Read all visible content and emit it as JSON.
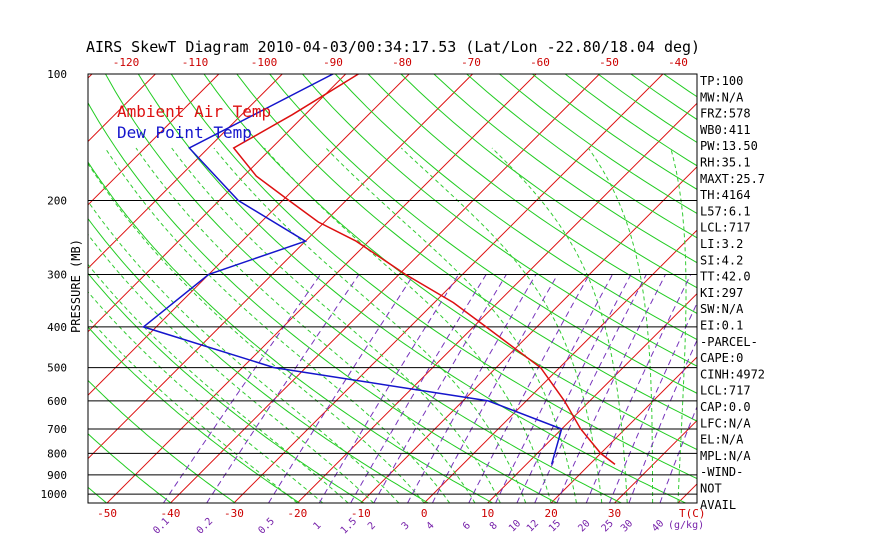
{
  "chart_data": {
    "type": "line",
    "title": "AIRS SkewT Diagram 2010-04-03/00:34:17.53 (Lat/Lon -22.80/18.04 deg)",
    "ylabel": "PRESSURE (MB)",
    "xlabel_temp": "T(C)",
    "xlabel_mix": "(g/kg)",
    "y_scale": "log",
    "ylim": [
      1050,
      100
    ],
    "xlim": [
      -53,
      43
    ],
    "pressure_ticks": [
      100,
      200,
      300,
      400,
      500,
      600,
      700,
      800,
      900,
      1000
    ],
    "bottom_temp_ticks": [
      -50,
      -40,
      -30,
      -20,
      -10,
      0,
      10,
      20,
      30
    ],
    "top_temp_ticks": [
      -120,
      -110,
      -100,
      -90,
      -80,
      -70,
      -60,
      -50,
      -40
    ],
    "mixing_ratio_labels": [
      "0.1",
      "0.2",
      "0.5",
      "1",
      "1.5",
      "2",
      "3",
      "4",
      "6",
      "8",
      "10",
      "12",
      "15",
      "20",
      "25",
      "30",
      "40"
    ],
    "grid": true,
    "legend": [
      {
        "name": "Ambient Air Temp",
        "color": "#dd1010"
      },
      {
        "name": "Dew Point Temp",
        "color": "#1515cc"
      }
    ],
    "series": [
      {
        "name": "Ambient Air Temp",
        "color": "#dd1010",
        "points": [
          {
            "p": 100,
            "t": -78
          },
          {
            "p": 125,
            "t": -82
          },
          {
            "p": 150,
            "t": -86
          },
          {
            "p": 175,
            "t": -78
          },
          {
            "p": 200,
            "t": -69
          },
          {
            "p": 225,
            "t": -61
          },
          {
            "p": 250,
            "t": -52
          },
          {
            "p": 300,
            "t": -39
          },
          {
            "p": 350,
            "t": -27
          },
          {
            "p": 400,
            "t": -18
          },
          {
            "p": 500,
            "t": -3
          },
          {
            "p": 600,
            "t": 6
          },
          {
            "p": 700,
            "t": 13
          },
          {
            "p": 800,
            "t": 20
          },
          {
            "p": 850,
            "t": 24
          }
        ]
      },
      {
        "name": "Dew Point Temp",
        "color": "#1515cc",
        "points": [
          {
            "p": 100,
            "t": -82
          },
          {
            "p": 150,
            "t": -93
          },
          {
            "p": 200,
            "t": -77
          },
          {
            "p": 250,
            "t": -60
          },
          {
            "p": 300,
            "t": -70
          },
          {
            "p": 400,
            "t": -72
          },
          {
            "p": 500,
            "t": -45
          },
          {
            "p": 600,
            "t": -6
          },
          {
            "p": 700,
            "t": 10
          },
          {
            "p": 850,
            "t": 14
          }
        ]
      }
    ],
    "indices": [
      "TP:100",
      "MW:N/A",
      "FRZ:578",
      "WB0:411",
      "PW:13.50",
      "RH:35.1",
      "MAXT:25.7",
      "TH:4164",
      "L57:6.1",
      "LCL:717",
      "LI:3.2",
      "SI:4.2",
      "TT:42.0",
      "KI:297",
      "SW:N/A",
      "EI:0.1",
      "-PARCEL-",
      "CAPE:0",
      "CINH:4972",
      "LCL:717",
      "CAP:0.0",
      "LFC:N/A",
      "EL:N/A",
      "MPL:N/A",
      "-WIND-",
      "NOT",
      "AVAIL"
    ],
    "colors": {
      "isotherm": "#dd1010",
      "dry_adiabat": "#22cc22",
      "moist_adiabat": "#33cc33",
      "mixing_ratio": "#7733bb",
      "isobar": "#000000",
      "axis_label": "#000000",
      "temp_tick_label": "#cc0000",
      "mix_label": "#7722aa"
    }
  }
}
